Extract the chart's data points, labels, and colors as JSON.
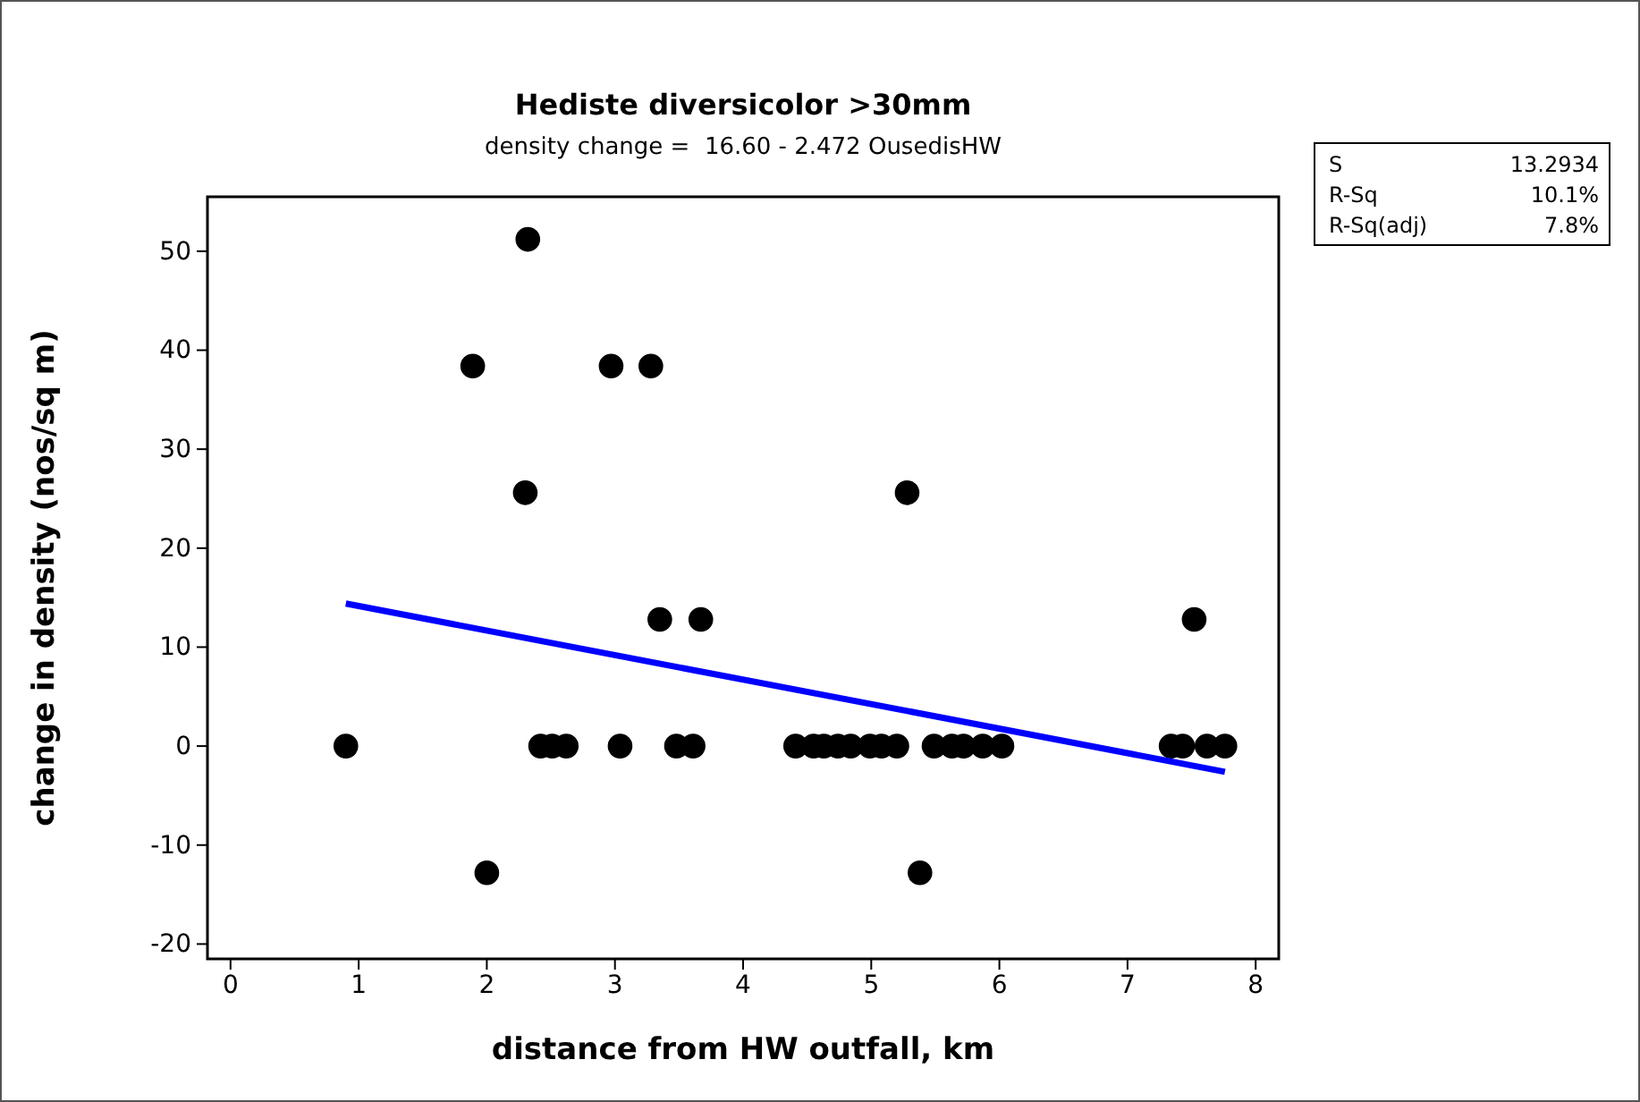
{
  "chart_data": {
    "type": "scatter",
    "title": "Hediste diversicolor >30mm",
    "subtitle": "density change =  16.60 - 2.472 OusedisHW",
    "xlabel": "distance from HW outfall, km",
    "ylabel": "change in density (nos/sq m)",
    "xlim": [
      -0.18,
      8.18
    ],
    "xticks": [
      0,
      1,
      2,
      3,
      4,
      5,
      6,
      7,
      8
    ],
    "ylim": [
      -21.5,
      55.5
    ],
    "yticks": [
      -20,
      -10,
      0,
      10,
      20,
      30,
      40,
      50
    ],
    "grid": false,
    "annotations": [
      "S",
      "13.2934",
      "R-Sq",
      "10.1%",
      "R-Sq(adj)",
      "7.8%"
    ],
    "series": [
      {
        "marker": "circle",
        "color": "#000000",
        "x": [
          0.9,
          1.89,
          2.32,
          2.3,
          2.0,
          2.97,
          3.28,
          3.35,
          3.67,
          5.28,
          5.38,
          7.52,
          2.42,
          2.51,
          2.62,
          3.04,
          3.48,
          3.61,
          4.41,
          4.55,
          4.63,
          4.74,
          4.84,
          4.99,
          5.08,
          5.2,
          5.49,
          5.63,
          5.72,
          5.87,
          6.02,
          7.34,
          7.43,
          7.62,
          7.76
        ],
        "values": [
          0,
          38.4,
          51.2,
          25.6,
          -12.8,
          38.4,
          38.4,
          12.8,
          12.8,
          25.6,
          -12.8,
          12.8,
          0,
          0,
          0,
          0,
          0,
          0,
          0,
          0,
          0,
          0,
          0,
          0,
          0,
          0,
          0,
          0,
          0,
          0,
          0,
          0,
          0,
          0,
          0
        ]
      },
      {
        "type": "line",
        "color": "#0000ff",
        "line_style": "solid",
        "x": [
          0.9,
          7.76
        ],
        "values": [
          14.4,
          -2.6
        ]
      }
    ]
  }
}
